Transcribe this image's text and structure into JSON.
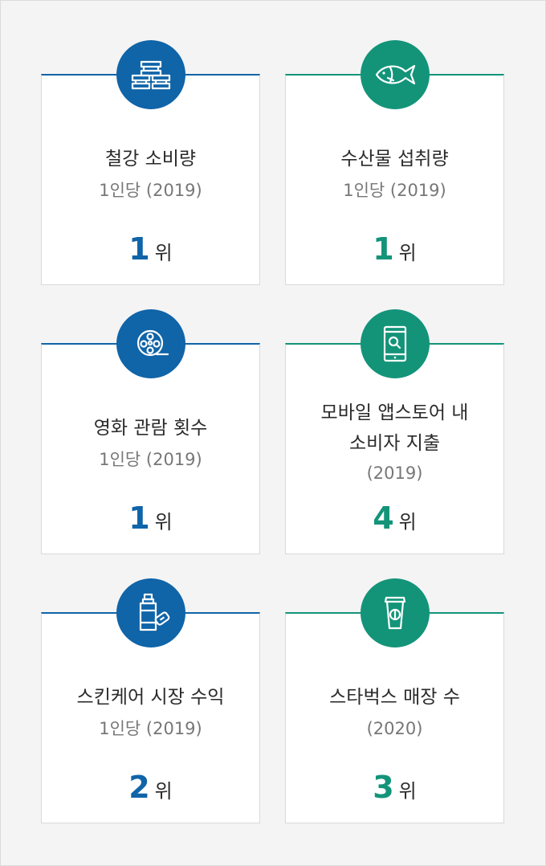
{
  "colors": {
    "blue": "#1064a8",
    "green": "#139479"
  },
  "cards": [
    {
      "icon": "steel-beam-icon",
      "title": "철강 소비량",
      "subtitle": "1인당 (2019)",
      "rank": "1",
      "unit": "위"
    },
    {
      "icon": "fish-icon",
      "title": "수산물 섭취량",
      "subtitle": "1인당 (2019)",
      "rank": "1",
      "unit": "위"
    },
    {
      "icon": "film-reel-icon",
      "title": "영화 관람 횟수",
      "subtitle": "1인당 (2019)",
      "rank": "1",
      "unit": "위"
    },
    {
      "icon": "mobile-search-icon",
      "title_line1": "모바일 앱스토어 내",
      "title_line2": "소비자 지출",
      "subtitle": "(2019)",
      "rank": "4",
      "unit": "위"
    },
    {
      "icon": "skincare-bottle-icon",
      "title": "스킨케어 시장 수익",
      "subtitle": "1인당 (2019)",
      "rank": "2",
      "unit": "위"
    },
    {
      "icon": "coffee-cup-icon",
      "title": "스타벅스 매장 수",
      "subtitle": "(2020)",
      "rank": "3",
      "unit": "위"
    }
  ]
}
